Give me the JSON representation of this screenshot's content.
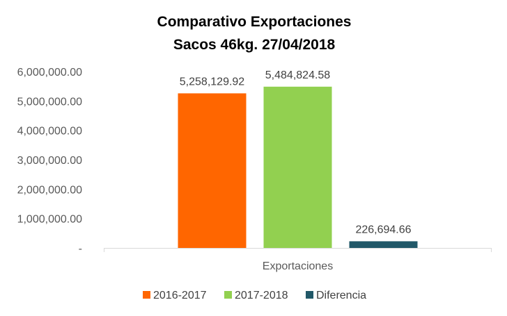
{
  "chart_data": {
    "type": "bar",
    "title": "Comparativo Exportaciones",
    "subtitle": "Sacos 46kg. 27/04/2018",
    "categories": [
      "Exportaciones"
    ],
    "series": [
      {
        "name": "2016-2017",
        "values": [
          5258129.92
        ],
        "label": "5,258,129.92",
        "color": "#ff6600"
      },
      {
        "name": "2017-2018",
        "values": [
          5484824.58
        ],
        "label": "5,484,824.58",
        "color": "#92d050"
      },
      {
        "name": "Diferencia",
        "values": [
          226694.66
        ],
        "label": "226,694.66",
        "color": "#215868"
      }
    ],
    "ylim": [
      0,
      6000000
    ],
    "yticks": [
      {
        "value": 0,
        "label": "-"
      },
      {
        "value": 1000000,
        "label": "1,000,000.00"
      },
      {
        "value": 2000000,
        "label": "2,000,000.00"
      },
      {
        "value": 3000000,
        "label": "3,000,000.00"
      },
      {
        "value": 4000000,
        "label": "4,000,000.00"
      },
      {
        "value": 5000000,
        "label": "5,000,000.00"
      },
      {
        "value": 6000000,
        "label": "6,000,000.00"
      }
    ],
    "grid": false,
    "legend_position": "bottom"
  }
}
